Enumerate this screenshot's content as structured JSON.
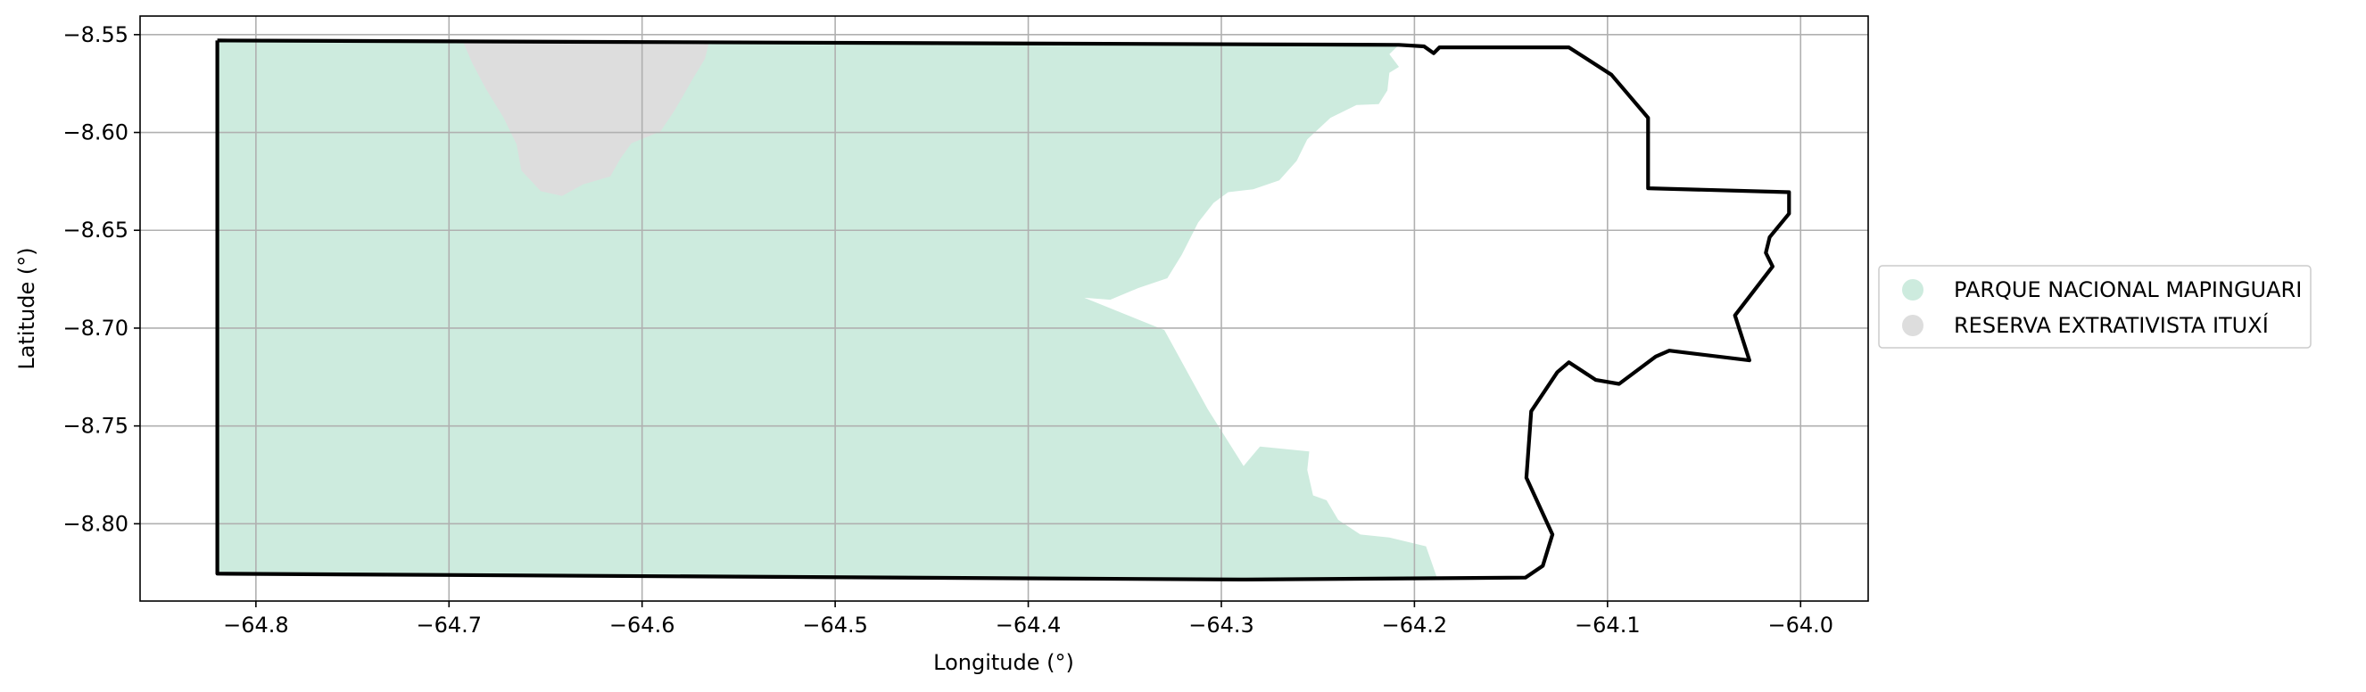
{
  "chart_data": {
    "type": "map",
    "xlabel": "Longitude (°)",
    "ylabel": "Latitude (°)",
    "xlim": [
      -64.86,
      -63.965
    ],
    "ylim": [
      -8.8395,
      -8.5405
    ],
    "xticks": [
      -64.8,
      -64.7,
      -64.6,
      -64.5,
      -64.4,
      -64.3,
      -64.2,
      -64.1,
      -64.0
    ],
    "yticks": [
      -8.8,
      -8.75,
      -8.7,
      -8.65,
      -8.6,
      -8.55
    ],
    "xtick_labels": [
      "−64.8",
      "−64.7",
      "−64.6",
      "−64.5",
      "−64.4",
      "−64.3",
      "−64.2",
      "−64.1",
      "−64.0"
    ],
    "ytick_labels": [
      "−8.80",
      "−8.75",
      "−8.70",
      "−8.65",
      "−8.60",
      "−8.55"
    ],
    "grid": true,
    "legend": {
      "placement": "outside-right",
      "entries": [
        {
          "label": "PARQUE NACIONAL MAPINGUARI",
          "color": "#cdebde"
        },
        {
          "label": "RESERVA EXTRATIVISTA ITUXÍ",
          "color": "#dddddd"
        }
      ]
    },
    "boundary": {
      "color": "#000000",
      "coords": [
        [
          -64.82,
          -8.553
        ],
        [
          -64.208,
          -8.5552
        ],
        [
          -64.195,
          -8.556
        ],
        [
          -64.19,
          -8.5595
        ],
        [
          -64.187,
          -8.5565
        ],
        [
          -64.12,
          -8.5565
        ],
        [
          -64.098,
          -8.5705
        ],
        [
          -64.079,
          -8.5925
        ],
        [
          -64.079,
          -8.6285
        ],
        [
          -64.006,
          -8.6305
        ],
        [
          -64.006,
          -8.6415
        ],
        [
          -64.016,
          -8.6535
        ],
        [
          -64.018,
          -8.6615
        ],
        [
          -64.0145,
          -8.6685
        ],
        [
          -64.034,
          -8.6935
        ],
        [
          -64.0265,
          -8.7165
        ],
        [
          -64.068,
          -8.7115
        ],
        [
          -64.075,
          -8.7145
        ],
        [
          -64.094,
          -8.7285
        ],
        [
          -64.106,
          -8.7265
        ],
        [
          -64.12,
          -8.7175
        ],
        [
          -64.126,
          -8.7225
        ],
        [
          -64.1395,
          -8.7425
        ],
        [
          -64.142,
          -8.7765
        ],
        [
          -64.1285,
          -8.8055
        ],
        [
          -64.1335,
          -8.8215
        ],
        [
          -64.1425,
          -8.8275
        ],
        [
          -64.29,
          -8.8285
        ],
        [
          -64.82,
          -8.8255
        ],
        [
          -64.82,
          -8.553
        ]
      ]
    },
    "regions": [
      {
        "name": "PARQUE NACIONAL MAPINGUARI",
        "color": "#cdebde",
        "coords": [
          [
            -64.82,
            -8.553
          ],
          [
            -64.208,
            -8.5552
          ],
          [
            -64.213,
            -8.56
          ],
          [
            -64.208,
            -8.5665
          ],
          [
            -64.213,
            -8.5695
          ],
          [
            -64.214,
            -8.5785
          ],
          [
            -64.2185,
            -8.5855
          ],
          [
            -64.23,
            -8.586
          ],
          [
            -64.2435,
            -8.5925
          ],
          [
            -64.2555,
            -8.6035
          ],
          [
            -64.261,
            -8.6145
          ],
          [
            -64.27,
            -8.6245
          ],
          [
            -64.2835,
            -8.629
          ],
          [
            -64.2965,
            -8.6305
          ],
          [
            -64.304,
            -8.636
          ],
          [
            -64.312,
            -8.646
          ],
          [
            -64.3205,
            -8.6625
          ],
          [
            -64.328,
            -8.6745
          ],
          [
            -64.343,
            -8.6795
          ],
          [
            -64.3575,
            -8.6855
          ],
          [
            -64.371,
            -8.6845
          ],
          [
            -64.3295,
            -8.701
          ],
          [
            -64.307,
            -8.7415
          ],
          [
            -64.2885,
            -8.7705
          ],
          [
            -64.28,
            -8.7605
          ],
          [
            -64.2545,
            -8.763
          ],
          [
            -64.2555,
            -8.7725
          ],
          [
            -64.2525,
            -8.7855
          ],
          [
            -64.2455,
            -8.788
          ],
          [
            -64.2395,
            -8.798
          ],
          [
            -64.228,
            -8.8055
          ],
          [
            -64.213,
            -8.807
          ],
          [
            -64.194,
            -8.8115
          ],
          [
            -64.188,
            -8.8285
          ],
          [
            -64.82,
            -8.8255
          ],
          [
            -64.82,
            -8.553
          ]
        ]
      },
      {
        "name": "RESERVA EXTRATIVISTA ITUXÍ",
        "color": "#dddddd",
        "coords": [
          [
            -64.693,
            -8.553
          ],
          [
            -64.565,
            -8.553
          ],
          [
            -64.5675,
            -8.5625
          ],
          [
            -64.574,
            -8.573
          ],
          [
            -64.583,
            -8.5885
          ],
          [
            -64.5905,
            -8.5995
          ],
          [
            -64.6055,
            -8.6055
          ],
          [
            -64.611,
            -8.613
          ],
          [
            -64.6165,
            -8.6225
          ],
          [
            -64.6305,
            -8.6265
          ],
          [
            -64.6415,
            -8.6325
          ],
          [
            -64.6525,
            -8.63
          ],
          [
            -64.6625,
            -8.6195
          ],
          [
            -64.665,
            -8.606
          ],
          [
            -64.672,
            -8.592
          ],
          [
            -64.681,
            -8.5775
          ],
          [
            -64.688,
            -8.5645
          ],
          [
            -64.693,
            -8.553
          ]
        ]
      }
    ]
  }
}
